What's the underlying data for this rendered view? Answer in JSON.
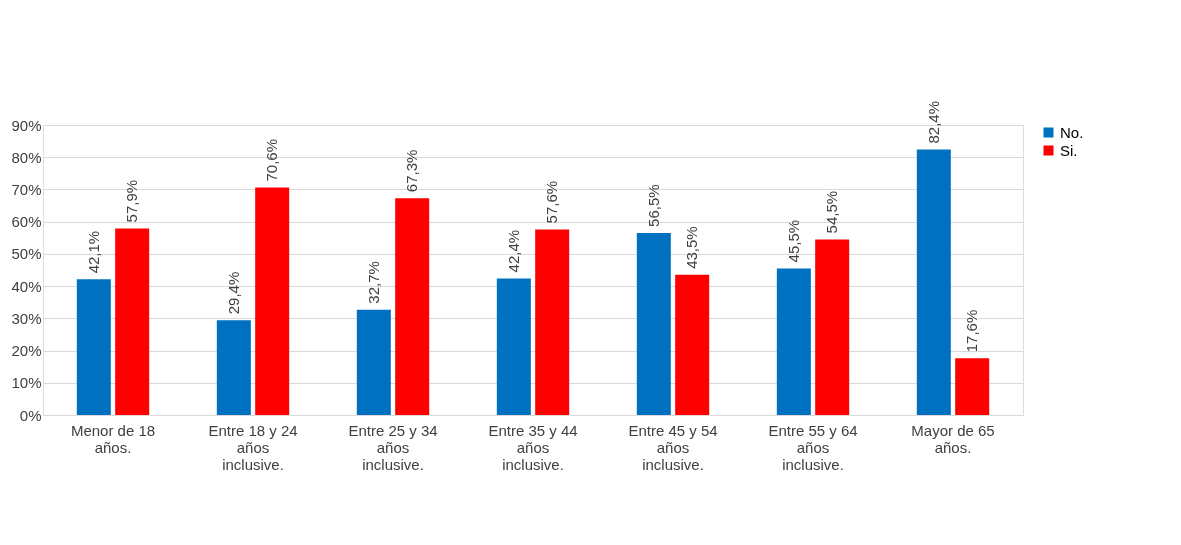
{
  "chart_data": {
    "type": "bar",
    "categories": [
      "Menor de 18 años.",
      "Entre 18 y 24 años inclusive.",
      "Entre 25 y 34 años inclusive.",
      "Entre 35 y 44 años inclusive.",
      "Entre 45 y 54 años inclusive.",
      "Entre 55 y 64 años inclusive.",
      "Mayor de 65 años."
    ],
    "series": [
      {
        "name": "No.",
        "color": "#0070c0",
        "values": [
          42.1,
          29.4,
          32.7,
          42.4,
          56.5,
          45.5,
          82.4
        ],
        "value_labels": [
          "42,1%",
          "29,4%",
          "32,7%",
          "42,4%",
          "56,5%",
          "45,5%",
          "82,4%"
        ]
      },
      {
        "name": "Si.",
        "color": "#ff0000",
        "values": [
          57.9,
          70.6,
          67.3,
          57.6,
          43.5,
          54.5,
          17.6
        ],
        "value_labels": [
          "57,9%",
          "70,6%",
          "67,3%",
          "57,6%",
          "43,5%",
          "54,5%",
          "17,6%"
        ]
      }
    ],
    "ylim": [
      0,
      90
    ],
    "yticks": [
      {
        "value": 0,
        "label": "0%"
      },
      {
        "value": 10,
        "label": "10%"
      },
      {
        "value": 20,
        "label": "20%"
      },
      {
        "value": 30,
        "label": "30%"
      },
      {
        "value": 40,
        "label": "40%"
      },
      {
        "value": 50,
        "label": "50%"
      },
      {
        "value": 60,
        "label": "60%"
      },
      {
        "value": 70,
        "label": "70%"
      },
      {
        "value": 80,
        "label": "80%"
      },
      {
        "value": 90,
        "label": "90%"
      }
    ],
    "grid": "y",
    "legend": "right"
  }
}
